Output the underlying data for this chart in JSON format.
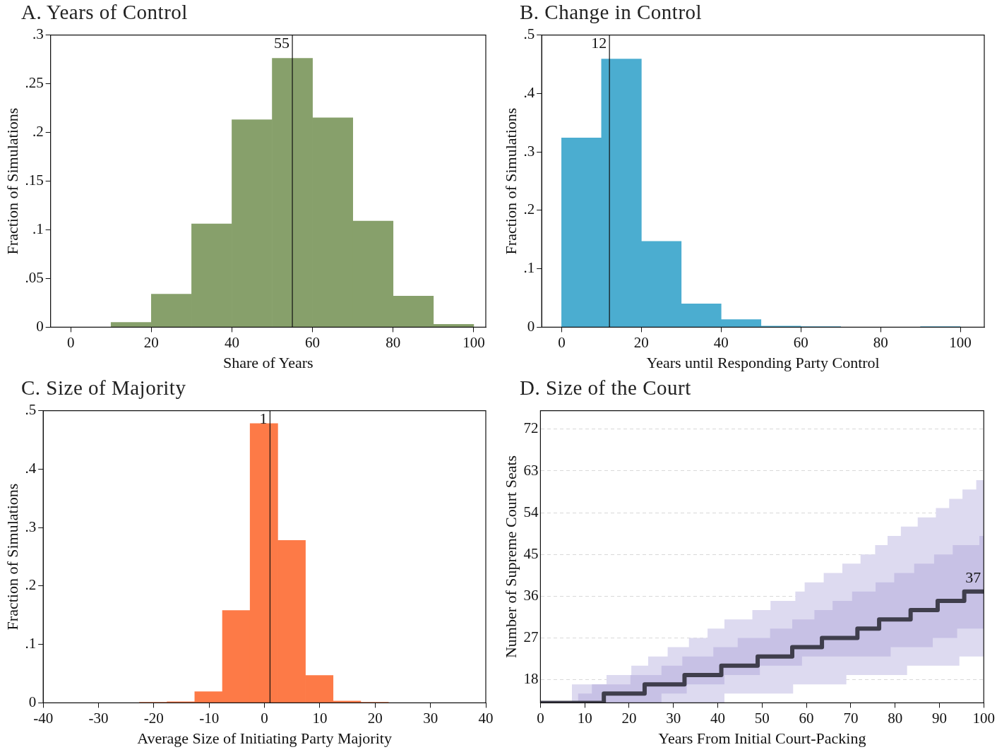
{
  "chart_data": [
    {
      "type": "histogram",
      "title": "A. Years of Control",
      "xlabel": "Share of Years",
      "ylabel": "Fraction of Simulations",
      "color": "#87a06b",
      "bins": [
        0,
        10,
        20,
        30,
        40,
        50,
        60,
        70,
        80,
        90,
        100
      ],
      "values": [
        0,
        0.005,
        0.034,
        0.106,
        0.213,
        0.276,
        0.215,
        0.109,
        0.032,
        0.003
      ],
      "xlim": [
        -5,
        103
      ],
      "xticks": [
        0,
        20,
        40,
        60,
        80,
        100
      ],
      "ylim": [
        0,
        0.3
      ],
      "yticks": [
        0,
        {
          "value": 0.05,
          "label": ".05"
        },
        {
          "value": 0.1,
          "label": ".1"
        },
        {
          "value": 0.15,
          "label": ".15"
        },
        {
          "value": 0.2,
          "label": ".2"
        },
        {
          "value": 0.25,
          "label": ".25"
        },
        {
          "value": 0.3,
          "label": ".3"
        }
      ],
      "ref_lines": [
        {
          "axis": "x",
          "value": 55,
          "label": "55"
        }
      ]
    },
    {
      "type": "histogram",
      "title": "B. Change in Control",
      "xlabel": "Years until Responding Party Control",
      "ylabel": "Fraction of Simulations",
      "color": "#4badd0",
      "bins": [
        0,
        10,
        20,
        30,
        40,
        50,
        60,
        70,
        80,
        90,
        100
      ],
      "values": [
        0.324,
        0.459,
        0.147,
        0.04,
        0.013,
        0.002,
        0.001,
        0,
        0,
        0.001
      ],
      "xlim": [
        -5,
        106
      ],
      "xticks": [
        0,
        20,
        40,
        60,
        80,
        100
      ],
      "ylim": [
        0,
        0.5
      ],
      "yticks": [
        0,
        {
          "value": 0.1,
          "label": ".1"
        },
        {
          "value": 0.2,
          "label": ".2"
        },
        {
          "value": 0.3,
          "label": ".3"
        },
        {
          "value": 0.4,
          "label": ".4"
        },
        {
          "value": 0.5,
          "label": ".5"
        }
      ],
      "ref_lines": [
        {
          "axis": "x",
          "value": 12,
          "label": "12"
        }
      ]
    },
    {
      "type": "histogram",
      "title": "C. Size of Majority",
      "xlabel": "Average Size of Initiating Party Majority",
      "ylabel": "Fraction of Simulations",
      "color": "#fd7a47",
      "bins": [
        -22.6,
        -17.6,
        -12.6,
        -7.6,
        -2.6,
        2.4,
        7.4,
        12.4,
        17.4,
        22.4
      ],
      "values": [
        0.001,
        0.002,
        0.019,
        0.158,
        0.478,
        0.278,
        0.047,
        0.003,
        0.001
      ],
      "xlim": [
        -40,
        40
      ],
      "xticks": [
        -40,
        -30,
        -20,
        -10,
        0,
        10,
        20,
        30,
        40
      ],
      "ylim": [
        0,
        0.5
      ],
      "yticks": [
        0,
        {
          "value": 0.1,
          "label": ".1"
        },
        {
          "value": 0.2,
          "label": ".2"
        },
        {
          "value": 0.3,
          "label": ".3"
        },
        {
          "value": 0.4,
          "label": ".4"
        },
        {
          "value": 0.5,
          "label": ".5"
        }
      ],
      "ref_lines": [
        {
          "axis": "x",
          "value": 1,
          "label": "1"
        }
      ]
    },
    {
      "type": "step",
      "title": "D. Size of the Court",
      "xlabel": "Years From Initial Court-Packing",
      "ylabel": "Number of Supreme Court Seats",
      "xlim": [
        0,
        100
      ],
      "xticks": [
        0,
        10,
        20,
        30,
        40,
        50,
        60,
        70,
        80,
        90,
        100
      ],
      "ylim": [
        13,
        76
      ],
      "yticks": [
        18,
        27,
        36,
        45,
        54,
        63,
        72
      ],
      "grid": "y",
      "annotations": [
        {
          "text": "37",
          "x": 100,
          "y": 37
        }
      ],
      "series": [
        {
          "color": "#dddaf0",
          "values": [
            null,
            null,
            null,
            null,
            null,
            null,
            null,
            null,
            null,
            null,
            null,
            null,
            null,
            null,
            null,
            null,
            null,
            null,
            null,
            null,
            null,
            null,
            null,
            null,
            null,
            null,
            null,
            null,
            null
          ],
          "x": [
            0,
            7.1,
            14.9,
            20.5,
            24.3,
            28.7,
            33.5,
            37.7,
            41.5,
            47.8,
            51.9,
            57,
            57.5,
            59.6,
            63.9,
            68.1,
            69,
            72.2,
            75.5,
            78.3,
            81.3,
            82.7,
            85.1,
            89.2,
            92.2,
            94.5,
            95.2,
            98.3,
            100
          ],
          "lower": [
            13,
            13,
            13,
            13,
            13,
            13,
            13,
            13,
            15,
            15,
            15,
            17,
            17,
            17,
            17,
            17,
            19,
            19,
            19,
            19,
            19,
            21,
            21,
            21,
            21,
            23,
            23,
            23,
            23
          ],
          "upper": [
            13,
            17,
            19,
            21,
            23,
            25,
            27,
            29,
            31,
            33,
            35,
            35,
            37,
            39,
            41,
            43,
            43,
            45,
            47,
            49,
            51,
            51,
            53,
            55,
            57,
            57,
            59,
            61,
            61
          ]
        },
        {
          "color": "#c7c1e5",
          "values": [
            null,
            null,
            null,
            null,
            null,
            null,
            null,
            null,
            null,
            null,
            null,
            null,
            null,
            null,
            null,
            null,
            null,
            null,
            null,
            null,
            null,
            null,
            null,
            null,
            null,
            null,
            null
          ],
          "x": [
            0,
            8.5,
            11.6,
            20.3,
            27.3,
            32,
            33,
            39,
            41.5,
            44.5,
            49.5,
            51.8,
            56.8,
            59,
            61.8,
            65.9,
            70.3,
            75.6,
            79,
            79.8,
            84.3,
            88.5,
            88.8,
            93,
            94,
            99,
            100
          ],
          "lower": [
            13,
            13,
            13,
            13,
            15,
            15,
            17,
            17,
            19,
            19,
            21,
            21,
            21,
            23,
            23,
            23,
            23,
            23,
            25,
            25,
            25,
            27,
            27,
            27,
            29,
            29,
            29
          ],
          "upper": [
            13,
            15,
            17,
            19,
            21,
            23,
            23,
            25,
            25,
            27,
            27,
            29,
            31,
            31,
            33,
            35,
            37,
            39,
            39,
            41,
            43,
            43,
            45,
            47,
            47,
            49,
            49
          ]
        },
        {
          "color": "#3f3e4c",
          "x": [
            0,
            14.3,
            23.5,
            32.5,
            40.8,
            49,
            56.8,
            63.5,
            71.5,
            76.4,
            83.5,
            89.6,
            95.6,
            100
          ],
          "values": [
            13,
            15,
            17,
            19,
            21,
            23,
            25,
            27,
            29,
            31,
            33,
            35,
            37,
            37
          ]
        }
      ]
    }
  ]
}
